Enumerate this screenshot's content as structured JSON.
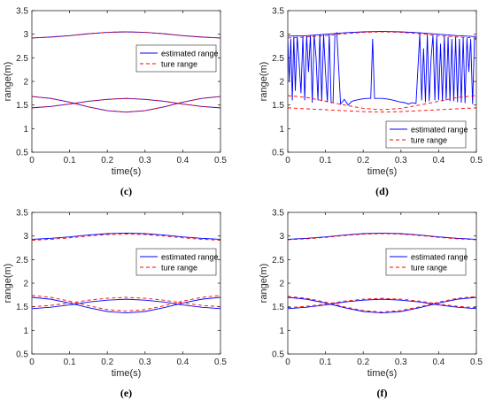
{
  "colors": {
    "estimated": "#0000ff",
    "true_range": "#ff0000",
    "axis": "#262626"
  },
  "chart_data": [
    {
      "panel": "(c)",
      "type": "line",
      "xlabel": "time(s)",
      "ylabel": "range(m)",
      "xlim": [
        0,
        0.5
      ],
      "ylim": [
        0.5,
        3.5
      ],
      "xticks": [
        "0",
        "0.1",
        "0.2",
        "0.3",
        "0.4",
        "0.5"
      ],
      "yticks": [
        "0.5",
        "1",
        "1.5",
        "2",
        "2.5",
        "3",
        "3.5"
      ],
      "grid": false,
      "legend_position": "middle-right",
      "legend": [
        "estimated range",
        "ture range"
      ],
      "series": [
        {
          "name": "estimated range",
          "style": "solid",
          "targets": [
            {
              "x": [
                0,
                0.05,
                0.1,
                0.15,
                0.2,
                0.25,
                0.3,
                0.35,
                0.4,
                0.45,
                0.5
              ],
              "y": [
                2.92,
                2.94,
                2.97,
                3.01,
                3.04,
                3.05,
                3.04,
                3.01,
                2.97,
                2.94,
                2.92
              ]
            },
            {
              "x": [
                0,
                0.05,
                0.1,
                0.15,
                0.2,
                0.25,
                0.3,
                0.35,
                0.4,
                0.45,
                0.5
              ],
              "y": [
                1.68,
                1.64,
                1.56,
                1.46,
                1.38,
                1.35,
                1.38,
                1.46,
                1.56,
                1.64,
                1.68
              ]
            },
            {
              "x": [
                0,
                0.05,
                0.1,
                0.15,
                0.2,
                0.25,
                0.3,
                0.35,
                0.4,
                0.45,
                0.5
              ],
              "y": [
                1.44,
                1.47,
                1.52,
                1.58,
                1.62,
                1.64,
                1.62,
                1.58,
                1.52,
                1.47,
                1.44
              ]
            }
          ]
        },
        {
          "name": "ture range",
          "style": "dashed",
          "targets": [
            {
              "x": [
                0,
                0.05,
                0.1,
                0.15,
                0.2,
                0.25,
                0.3,
                0.35,
                0.4,
                0.45,
                0.5
              ],
              "y": [
                2.92,
                2.94,
                2.97,
                3.01,
                3.04,
                3.05,
                3.04,
                3.01,
                2.97,
                2.94,
                2.92
              ]
            },
            {
              "x": [
                0,
                0.05,
                0.1,
                0.15,
                0.2,
                0.25,
                0.3,
                0.35,
                0.4,
                0.45,
                0.5
              ],
              "y": [
                1.68,
                1.64,
                1.56,
                1.46,
                1.38,
                1.35,
                1.38,
                1.46,
                1.56,
                1.64,
                1.68
              ]
            },
            {
              "x": [
                0,
                0.05,
                0.1,
                0.15,
                0.2,
                0.25,
                0.3,
                0.35,
                0.4,
                0.45,
                0.5
              ],
              "y": [
                1.44,
                1.47,
                1.52,
                1.58,
                1.62,
                1.64,
                1.62,
                1.58,
                1.52,
                1.47,
                1.44
              ]
            }
          ]
        }
      ]
    },
    {
      "panel": "(d)",
      "type": "line",
      "xlabel": "time(s)",
      "ylabel": "range(m)",
      "xlim": [
        0,
        0.5
      ],
      "ylim": [
        0.5,
        3.5
      ],
      "xticks": [
        "0",
        "0.1",
        "0.2",
        "0.3",
        "0.4",
        "0.5"
      ],
      "yticks": [
        "0.5",
        "1",
        "1.5",
        "2",
        "2.5",
        "3",
        "3.5"
      ],
      "grid": false,
      "legend_position": "bottom-right",
      "legend": [
        "estimated range",
        "ture range"
      ],
      "series": [
        {
          "name": "estimated range",
          "style": "solid",
          "targets": [
            {
              "x": [
                0,
                0.004,
                0.008,
                0.012,
                0.016,
                0.02,
                0.025,
                0.03,
                0.035,
                0.04,
                0.045,
                0.05,
                0.055,
                0.06,
                0.065,
                0.07,
                0.075,
                0.08,
                0.085,
                0.09,
                0.095,
                0.1,
                0.105,
                0.11,
                0.115,
                0.12,
                0.125,
                0.13,
                0.14,
                0.15,
                0.16,
                0.17,
                0.18,
                0.19,
                0.2,
                0.21,
                0.22,
                0.225,
                0.23,
                0.24,
                0.25,
                0.26,
                0.27,
                0.28,
                0.29,
                0.3,
                0.31,
                0.32,
                0.33,
                0.34,
                0.35,
                0.355,
                0.36,
                0.365,
                0.37,
                0.375,
                0.38,
                0.385,
                0.39,
                0.395,
                0.4,
                0.405,
                0.41,
                0.415,
                0.42,
                0.425,
                0.43,
                0.435,
                0.44,
                0.445,
                0.45,
                0.455,
                0.46,
                0.465,
                0.47,
                0.475,
                0.48,
                0.485,
                0.49,
                0.495,
                0.5
              ],
              "y": [
                2.93,
                2.0,
                2.9,
                1.6,
                2.95,
                1.8,
                2.95,
                2.4,
                1.75,
                2.96,
                1.6,
                2.97,
                2.2,
                2.98,
                1.55,
                2.99,
                2.5,
                1.6,
                3.0,
                1.58,
                3.0,
                2.2,
                1.56,
                3.01,
                1.55,
                1.55,
                3.0,
                3.03,
                1.52,
                1.62,
                1.5,
                1.58,
                1.6,
                1.62,
                1.63,
                1.64,
                1.64,
                2.9,
                1.64,
                1.64,
                1.64,
                1.63,
                1.62,
                1.6,
                1.58,
                1.56,
                1.55,
                1.52,
                1.55,
                1.53,
                3.02,
                1.6,
                2.7,
                1.56,
                3.0,
                1.58,
                2.5,
                2.98,
                1.6,
                2.97,
                1.6,
                2.8,
                1.58,
                2.96,
                1.6,
                2.95,
                1.58,
                2.9,
                1.58,
                2.94,
                1.56,
                2.9,
                1.55,
                2.93,
                1.54,
                2.92,
                2.2,
                2.9,
                1.52,
                2.9,
                2.9
              ]
            },
            {
              "x": [
                0,
                0.05,
                0.1,
                0.15,
                0.2,
                0.25,
                0.3,
                0.35,
                0.4,
                0.45,
                0.5
              ],
              "y": [
                2.96,
                2.97,
                3.0,
                3.03,
                3.05,
                3.06,
                3.05,
                3.03,
                3.0,
                2.97,
                2.95
              ]
            }
          ]
        },
        {
          "name": "ture range",
          "style": "dashed",
          "targets": [
            {
              "x": [
                0,
                0.05,
                0.1,
                0.15,
                0.2,
                0.25,
                0.3,
                0.35,
                0.4,
                0.45,
                0.5
              ],
              "y": [
                2.92,
                2.94,
                2.97,
                3.01,
                3.04,
                3.05,
                3.04,
                3.01,
                2.97,
                2.94,
                2.92
              ]
            },
            {
              "x": [
                0,
                0.05,
                0.1,
                0.15,
                0.2,
                0.25,
                0.3,
                0.35,
                0.4,
                0.45,
                0.5
              ],
              "y": [
                1.44,
                1.42,
                1.4,
                1.38,
                1.36,
                1.35,
                1.36,
                1.38,
                1.4,
                1.42,
                1.44
              ]
            },
            {
              "x": [
                0,
                0.05,
                0.1,
                0.15,
                0.2,
                0.25,
                0.3,
                0.35,
                0.4,
                0.45,
                0.5
              ],
              "y": [
                1.7,
                1.66,
                1.58,
                1.5,
                1.43,
                1.4,
                1.43,
                1.5,
                1.58,
                1.66,
                1.7
              ]
            }
          ]
        }
      ]
    },
    {
      "panel": "(e)",
      "type": "line",
      "xlabel": "time(s)",
      "ylabel": "range(m)",
      "xlim": [
        0,
        0.5
      ],
      "ylim": [
        0.5,
        3.5
      ],
      "xticks": [
        "0",
        "0.1",
        "0.2",
        "0.3",
        "0.4",
        "0.5"
      ],
      "yticks": [
        "0.5",
        "1",
        "1.5",
        "2",
        "2.5",
        "3",
        "3.5"
      ],
      "grid": false,
      "legend_position": "middle-right",
      "legend": [
        "estimated range",
        "ture range"
      ],
      "series": [
        {
          "name": "estimated range",
          "style": "solid",
          "targets": [
            {
              "x": [
                0,
                0.05,
                0.1,
                0.15,
                0.2,
                0.25,
                0.3,
                0.35,
                0.4,
                0.45,
                0.5
              ],
              "y": [
                2.93,
                2.95,
                2.98,
                3.02,
                3.05,
                3.06,
                3.05,
                3.02,
                2.98,
                2.95,
                2.93
              ]
            },
            {
              "x": [
                0,
                0.05,
                0.1,
                0.15,
                0.2,
                0.25,
                0.3,
                0.35,
                0.4,
                0.45,
                0.5
              ],
              "y": [
                1.7,
                1.66,
                1.58,
                1.48,
                1.4,
                1.37,
                1.4,
                1.48,
                1.58,
                1.66,
                1.7
              ]
            },
            {
              "x": [
                0,
                0.05,
                0.1,
                0.15,
                0.2,
                0.25,
                0.3,
                0.35,
                0.4,
                0.45,
                0.5
              ],
              "y": [
                1.46,
                1.49,
                1.54,
                1.6,
                1.64,
                1.66,
                1.64,
                1.6,
                1.54,
                1.49,
                1.46
              ]
            }
          ]
        },
        {
          "name": "ture range",
          "style": "dashed",
          "targets": [
            {
              "x": [
                0,
                0.05,
                0.1,
                0.15,
                0.2,
                0.25,
                0.3,
                0.35,
                0.4,
                0.45,
                0.5
              ],
              "y": [
                2.91,
                2.93,
                2.96,
                3.0,
                3.03,
                3.04,
                3.03,
                3.0,
                2.96,
                2.93,
                2.91
              ]
            },
            {
              "x": [
                0,
                0.05,
                0.1,
                0.15,
                0.2,
                0.25,
                0.3,
                0.35,
                0.4,
                0.45,
                0.5
              ],
              "y": [
                1.74,
                1.7,
                1.62,
                1.52,
                1.44,
                1.41,
                1.44,
                1.52,
                1.62,
                1.7,
                1.74
              ]
            },
            {
              "x": [
                0,
                0.05,
                0.1,
                0.15,
                0.2,
                0.25,
                0.3,
                0.35,
                0.4,
                0.45,
                0.5
              ],
              "y": [
                1.5,
                1.53,
                1.58,
                1.64,
                1.68,
                1.7,
                1.68,
                1.64,
                1.58,
                1.53,
                1.5
              ]
            }
          ]
        }
      ]
    },
    {
      "panel": "(f)",
      "type": "line",
      "xlabel": "time(s)",
      "ylabel": "range(m)",
      "xlim": [
        0,
        0.5
      ],
      "ylim": [
        0.5,
        3.5
      ],
      "xticks": [
        "0",
        "0.1",
        "0.2",
        "0.3",
        "0.4",
        "0.5"
      ],
      "yticks": [
        "0.5",
        "1",
        "1.5",
        "2",
        "2.5",
        "3",
        "3.5"
      ],
      "grid": false,
      "legend_position": "middle-right",
      "legend": [
        "estimated range",
        "ture range"
      ],
      "series": [
        {
          "name": "estimated range",
          "style": "solid",
          "targets": [
            {
              "x": [
                0,
                0.05,
                0.1,
                0.15,
                0.2,
                0.25,
                0.3,
                0.35,
                0.4,
                0.45,
                0.5
              ],
              "y": [
                2.93,
                2.95,
                2.98,
                3.02,
                3.05,
                3.06,
                3.05,
                3.02,
                2.98,
                2.95,
                2.93
              ]
            },
            {
              "x": [
                0,
                0.05,
                0.1,
                0.15,
                0.2,
                0.25,
                0.3,
                0.35,
                0.4,
                0.45,
                0.5
              ],
              "y": [
                1.7,
                1.66,
                1.58,
                1.48,
                1.4,
                1.37,
                1.4,
                1.48,
                1.58,
                1.66,
                1.7
              ]
            },
            {
              "x": [
                0,
                0.05,
                0.1,
                0.15,
                0.2,
                0.25,
                0.3,
                0.35,
                0.4,
                0.45,
                0.5
              ],
              "y": [
                1.46,
                1.49,
                1.54,
                1.6,
                1.64,
                1.66,
                1.64,
                1.6,
                1.54,
                1.49,
                1.46
              ]
            }
          ]
        },
        {
          "name": "ture range",
          "style": "dashed",
          "targets": [
            {
              "x": [
                0,
                0.05,
                0.1,
                0.15,
                0.2,
                0.25,
                0.3,
                0.35,
                0.4,
                0.45,
                0.5
              ],
              "y": [
                2.92,
                2.94,
                2.97,
                3.01,
                3.04,
                3.05,
                3.04,
                3.01,
                2.97,
                2.94,
                2.92
              ]
            },
            {
              "x": [
                0,
                0.05,
                0.1,
                0.15,
                0.2,
                0.25,
                0.3,
                0.35,
                0.4,
                0.45,
                0.5
              ],
              "y": [
                1.72,
                1.68,
                1.6,
                1.5,
                1.42,
                1.39,
                1.42,
                1.5,
                1.6,
                1.68,
                1.72
              ]
            },
            {
              "x": [
                0,
                0.05,
                0.1,
                0.15,
                0.2,
                0.25,
                0.3,
                0.35,
                0.4,
                0.45,
                0.5
              ],
              "y": [
                1.48,
                1.51,
                1.56,
                1.62,
                1.66,
                1.68,
                1.66,
                1.62,
                1.56,
                1.51,
                1.48
              ]
            }
          ]
        }
      ]
    }
  ]
}
